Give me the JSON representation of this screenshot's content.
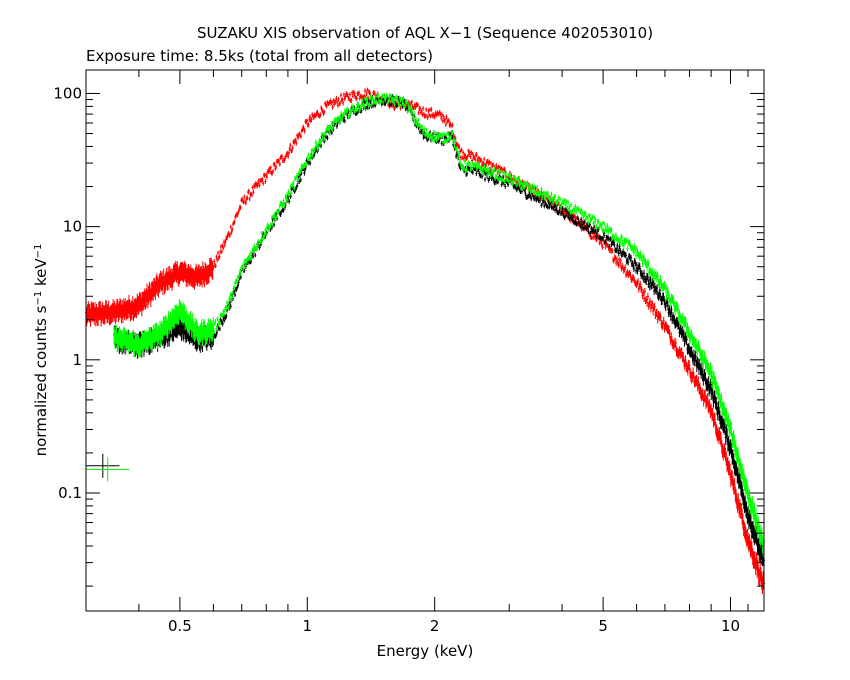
{
  "chart_data": {
    "type": "scatter",
    "title": "SUZAKU XIS observation of AQL X−1 (Sequence 402053010)",
    "subtitle": "Exposure time: 8.5ks (total from all detectors)",
    "xlabel": "Energy (keV)",
    "ylabel_main": "normalized counts s",
    "ylabel_sup1": "−1",
    "ylabel_mid": " keV",
    "ylabel_sup2": "−1",
    "x_scale": "log",
    "y_scale": "log",
    "xlim": [
      0.3,
      12
    ],
    "ylim": [
      0.013,
      150
    ],
    "grid": false,
    "x_ticks": [
      {
        "value": 0.5,
        "label": "0.5"
      },
      {
        "value": 1,
        "label": "1"
      },
      {
        "value": 2,
        "label": "2"
      },
      {
        "value": 5,
        "label": "5"
      },
      {
        "value": 10,
        "label": "10"
      }
    ],
    "y_ticks": [
      {
        "value": 0.1,
        "label": "0.1"
      },
      {
        "value": 1,
        "label": "1"
      },
      {
        "value": 10,
        "label": "10"
      },
      {
        "value": 100,
        "label": "100"
      }
    ],
    "series": [
      {
        "color": "#ff0000",
        "x": [
          0.3,
          0.35,
          0.4,
          0.45,
          0.5,
          0.55,
          0.6,
          0.65,
          0.7,
          0.8,
          0.9,
          1.0,
          1.1,
          1.2,
          1.3,
          1.4,
          1.5,
          1.6,
          1.7,
          1.8,
          1.9,
          2.0,
          2.1,
          2.2,
          2.3,
          2.5,
          3.0,
          4.0,
          5.0,
          6.0,
          7.0,
          8.0,
          9.0,
          10.0,
          11.0,
          12.0
        ],
        "y": [
          2.2,
          2.3,
          2.6,
          3.8,
          4.6,
          4.2,
          5.0,
          8.5,
          15,
          24,
          36,
          60,
          78,
          90,
          98,
          100,
          93,
          82,
          85,
          78,
          72,
          70,
          66,
          55,
          36,
          33,
          24,
          13.5,
          7.5,
          3.8,
          1.8,
          0.85,
          0.42,
          0.14,
          0.045,
          0.02
        ]
      },
      {
        "color": "#000000",
        "x": [
          0.35,
          0.4,
          0.45,
          0.5,
          0.55,
          0.6,
          0.65,
          0.7,
          0.8,
          0.9,
          1.0,
          1.1,
          1.2,
          1.3,
          1.4,
          1.5,
          1.6,
          1.7,
          1.8,
          1.9,
          2.0,
          2.1,
          2.2,
          2.3,
          2.5,
          3.0,
          4.0,
          5.0,
          6.0,
          7.0,
          8.0,
          9.0,
          10.0,
          11.0,
          12.0
        ],
        "y": [
          1.45,
          1.3,
          1.5,
          1.8,
          1.45,
          1.5,
          2.4,
          4.5,
          9,
          16,
          30,
          48,
          64,
          76,
          86,
          90,
          88,
          84,
          62,
          48,
          47,
          45,
          48,
          27,
          26,
          21,
          13,
          8.5,
          5,
          2.8,
          1.2,
          0.6,
          0.22,
          0.07,
          0.03
        ]
      },
      {
        "color": "#00ff00",
        "x": [
          0.35,
          0.4,
          0.45,
          0.5,
          0.55,
          0.6,
          0.65,
          0.7,
          0.8,
          0.9,
          1.0,
          1.1,
          1.2,
          1.3,
          1.4,
          1.5,
          1.6,
          1.7,
          1.8,
          1.9,
          2.0,
          2.1,
          2.2,
          2.3,
          2.5,
          3.0,
          4.0,
          5.0,
          6.0,
          7.0,
          8.0,
          9.0,
          10.0,
          11.0,
          12.0
        ],
        "y": [
          1.5,
          1.3,
          1.6,
          2.4,
          1.6,
          1.7,
          2.6,
          4.8,
          9.5,
          17,
          32,
          50,
          66,
          78,
          88,
          92,
          89,
          86,
          64,
          50,
          48,
          46,
          50,
          29,
          28,
          23,
          15,
          10,
          6.5,
          3.4,
          1.6,
          0.8,
          0.3,
          0.1,
          0.04
        ]
      }
    ],
    "legend_errorbars": [
      {
        "color": "#000000",
        "y": 0.16,
        "x_lo": 0.3,
        "x_hi": 0.36
      },
      {
        "color": "#00ff00",
        "y": 0.15,
        "x_lo": 0.3,
        "x_hi": 0.38
      }
    ]
  }
}
